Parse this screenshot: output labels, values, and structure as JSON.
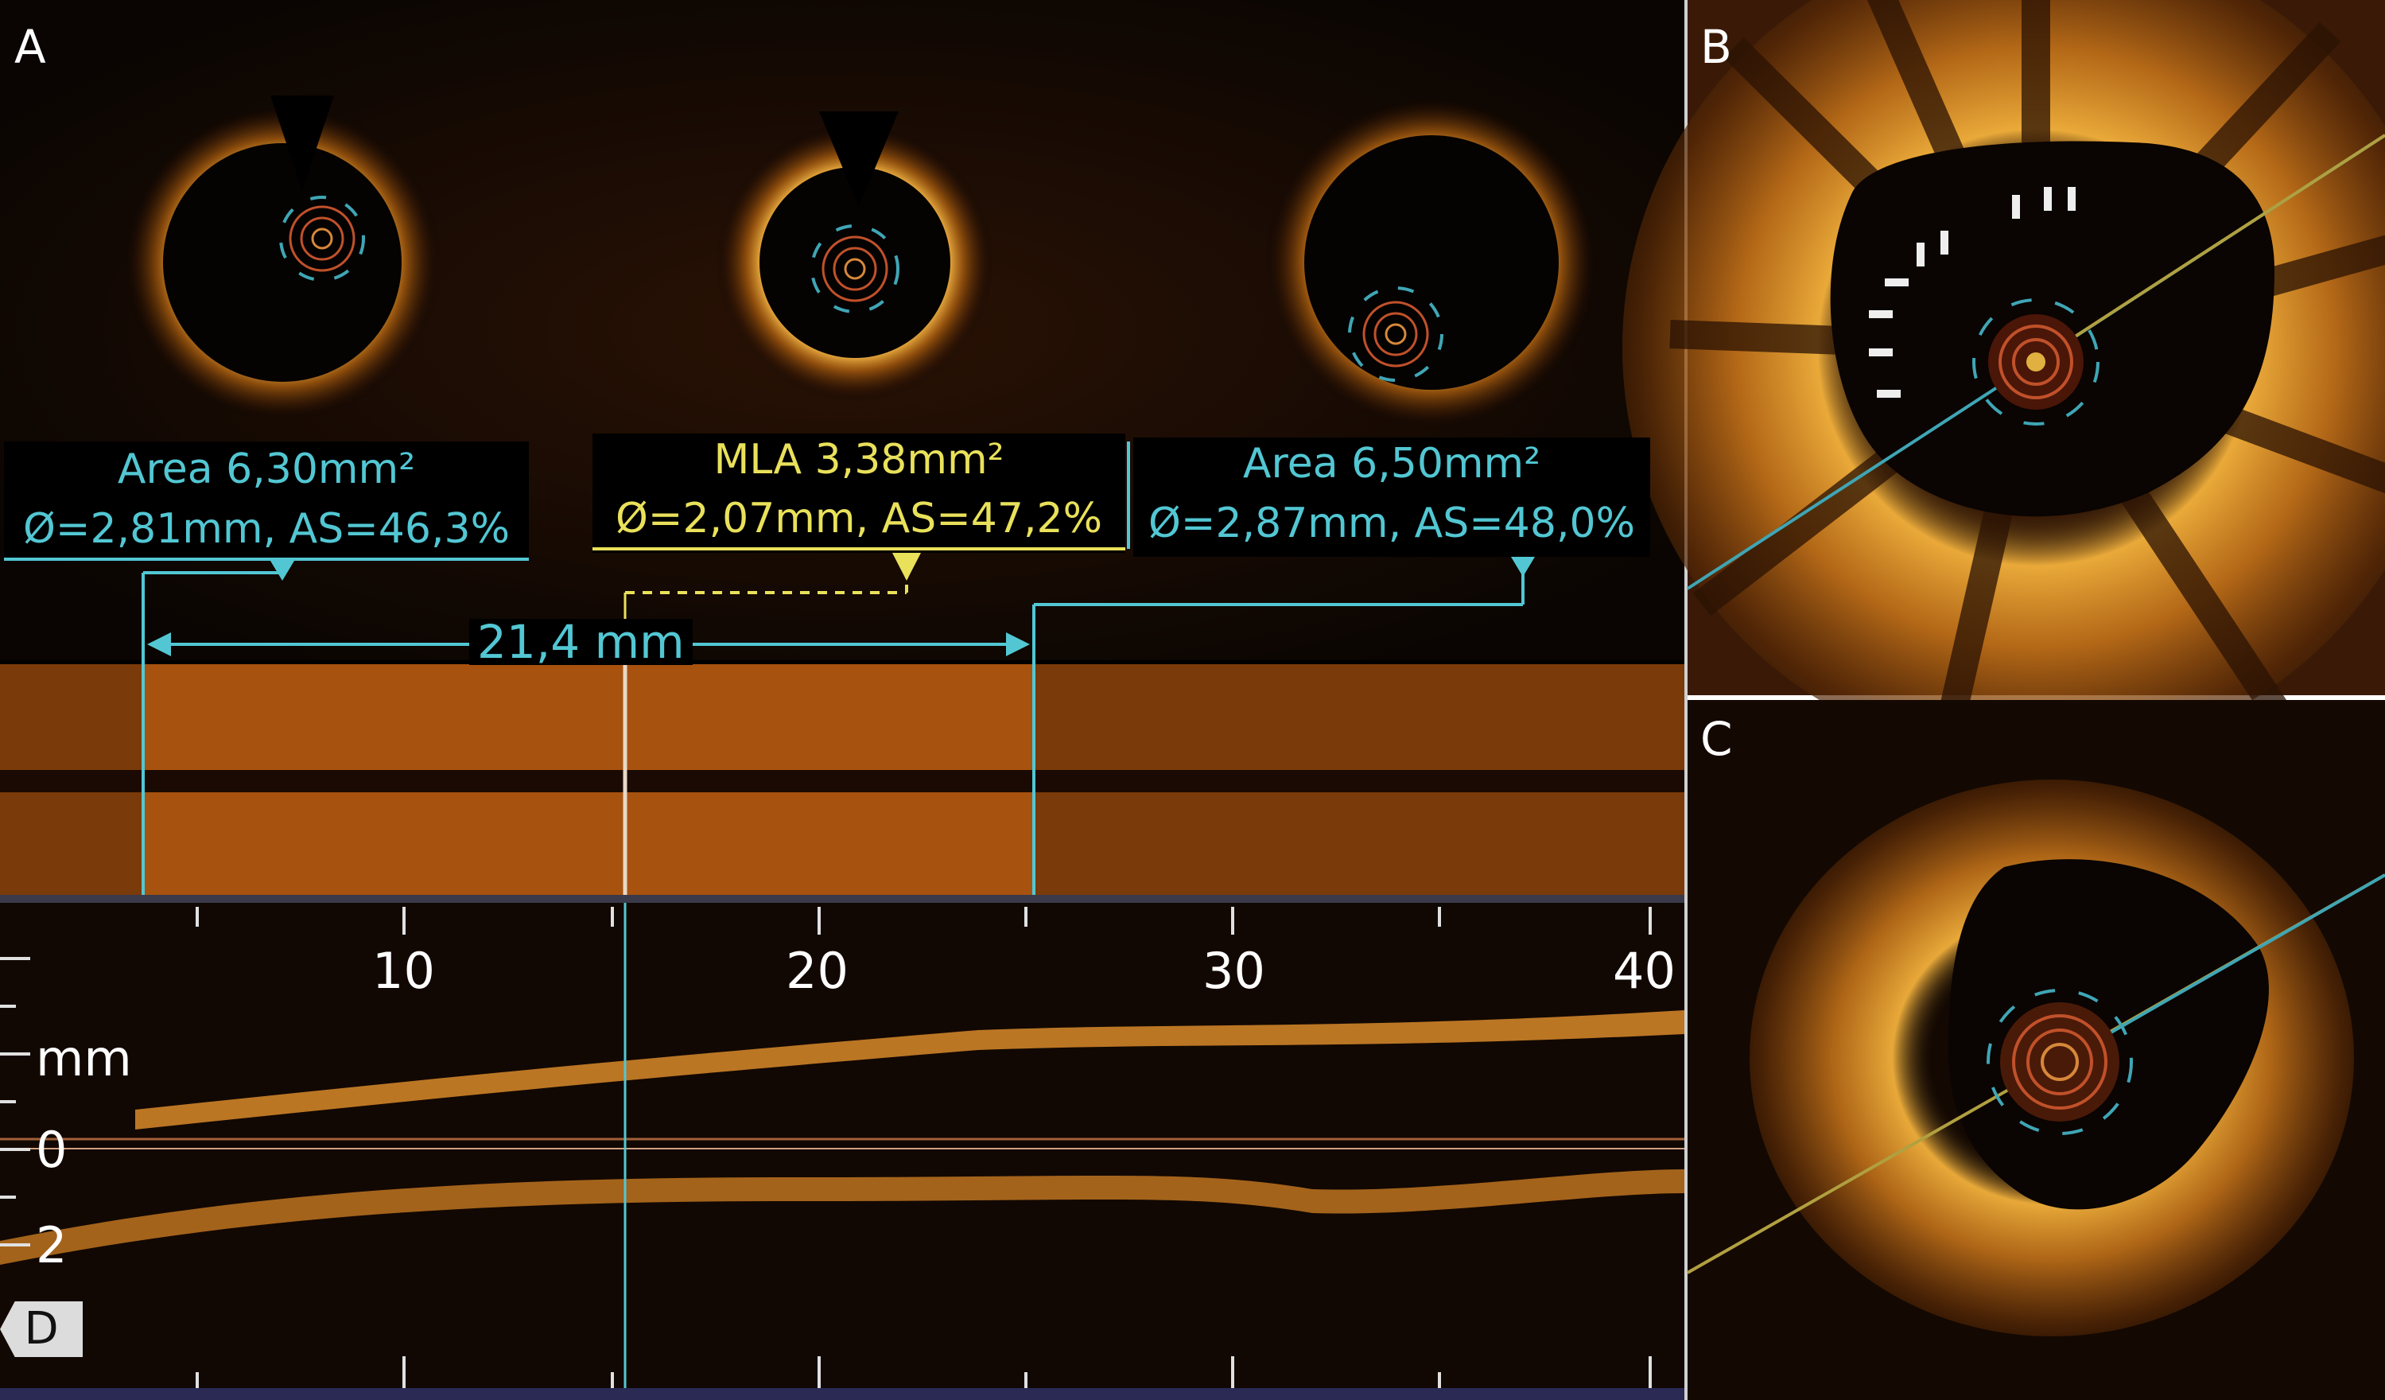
{
  "panels": {
    "a": "A",
    "b": "B",
    "c": "C"
  },
  "labels": {
    "left": {
      "line1": "Area 6,30mm²",
      "line2": "Ø=2,81mm, AS=46,3%"
    },
    "mla": {
      "line1": "MLA 3,38mm²",
      "line2": "Ø=2,07mm, AS=47,2%"
    },
    "right": {
      "line1": "Area 6,50mm²",
      "line2": "Ø=2,87mm, AS=48,0%"
    }
  },
  "measurement": "21,4 mm",
  "axis": {
    "ticks": [
      "10",
      "20",
      "30",
      "40"
    ],
    "unit": "mm",
    "zero": "0",
    "two": "2"
  },
  "distal_tag": "D",
  "colors": {
    "cyan": "#52c7d3",
    "yellow": "#e9e15a",
    "tissue": "#d98a2a",
    "lumen_band": "#7a3a0a",
    "selected_band": "#a8520f"
  }
}
